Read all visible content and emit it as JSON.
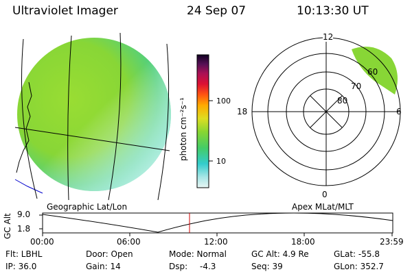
{
  "header": {
    "instrument": "Ultraviolet Imager",
    "date": "24 Sep 07",
    "time": "10:13:30 UT"
  },
  "colorbar": {
    "unit_label": "photon cm⁻²s⁻¹",
    "ticks": [
      "100",
      "10"
    ]
  },
  "polar_plot": {
    "mlt_labels": [
      "12",
      "18",
      "6",
      "0"
    ],
    "lat_labels": [
      "60",
      "70",
      "80"
    ]
  },
  "plot_labels": {
    "left": "Geographic Lat/Lon",
    "right": "Apex MLat/MLT"
  },
  "altitude_plot": {
    "ylabel": "GC Alt",
    "yticks": [
      "9.0",
      "1.8"
    ],
    "xticks": [
      "00:00",
      "06:00",
      "12:00",
      "18:00",
      "23:59"
    ],
    "colors": {
      "orbit": "#000000",
      "marker": "#cc0000"
    }
  },
  "info": {
    "flt": "Flt: LBHL",
    "ip": "IP: 36.0",
    "door": "Door: Open",
    "gain": "Gain: 14",
    "mode": "Mode: Normal",
    "dsp_label": "Dsp:",
    "dsp_value": "-4.3",
    "gc_alt": "GC Alt: 4.9 Re",
    "seq": "Seq: 39",
    "glat": "GLat: -55.8",
    "glon": "GLon: 352.7"
  }
}
